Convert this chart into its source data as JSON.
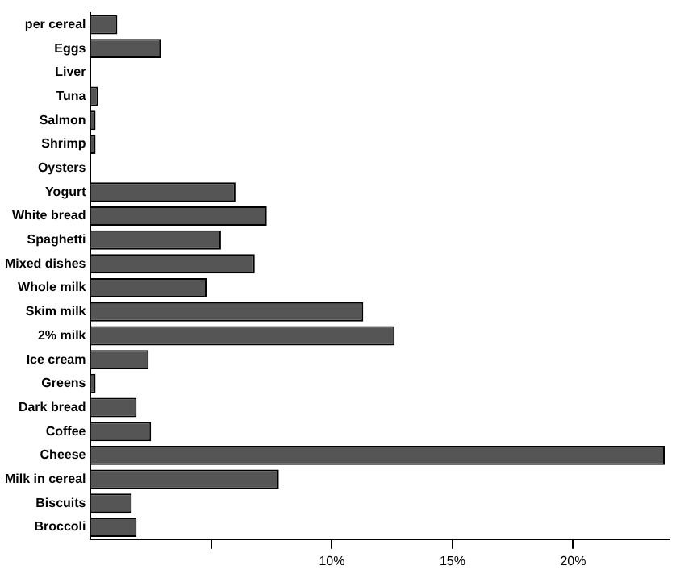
{
  "chart_data": {
    "type": "bar",
    "orientation": "horizontal",
    "categories": [
      "per cereal",
      "Eggs",
      "Liver",
      "Tuna",
      "Salmon",
      "Shrimp",
      "Oysters",
      "Yogurt",
      "White bread",
      "Spaghetti",
      "Mixed dishes",
      "Whole milk",
      "Skim milk",
      "2% milk",
      "Ice cream",
      "Greens",
      "Dark bread",
      "Coffee",
      "Cheese",
      "Milk in cereal",
      "Biscuits",
      "Broccoli"
    ],
    "values": [
      1.1,
      2.9,
      0,
      0.3,
      0.2,
      0.2,
      0,
      6.0,
      7.3,
      5.4,
      6.8,
      4.8,
      11.3,
      12.6,
      2.4,
      0.2,
      1.9,
      2.5,
      23.8,
      7.8,
      1.7,
      1.9
    ],
    "color": "#555555",
    "xlim": [
      0,
      24
    ],
    "xticks": [
      {
        "value": 5,
        "label": null
      },
      {
        "value": 10,
        "label": "10%"
      },
      {
        "value": 15,
        "label": "15%"
      },
      {
        "value": 20,
        "label": "20%"
      }
    ],
    "grid": false,
    "legend": false
  }
}
